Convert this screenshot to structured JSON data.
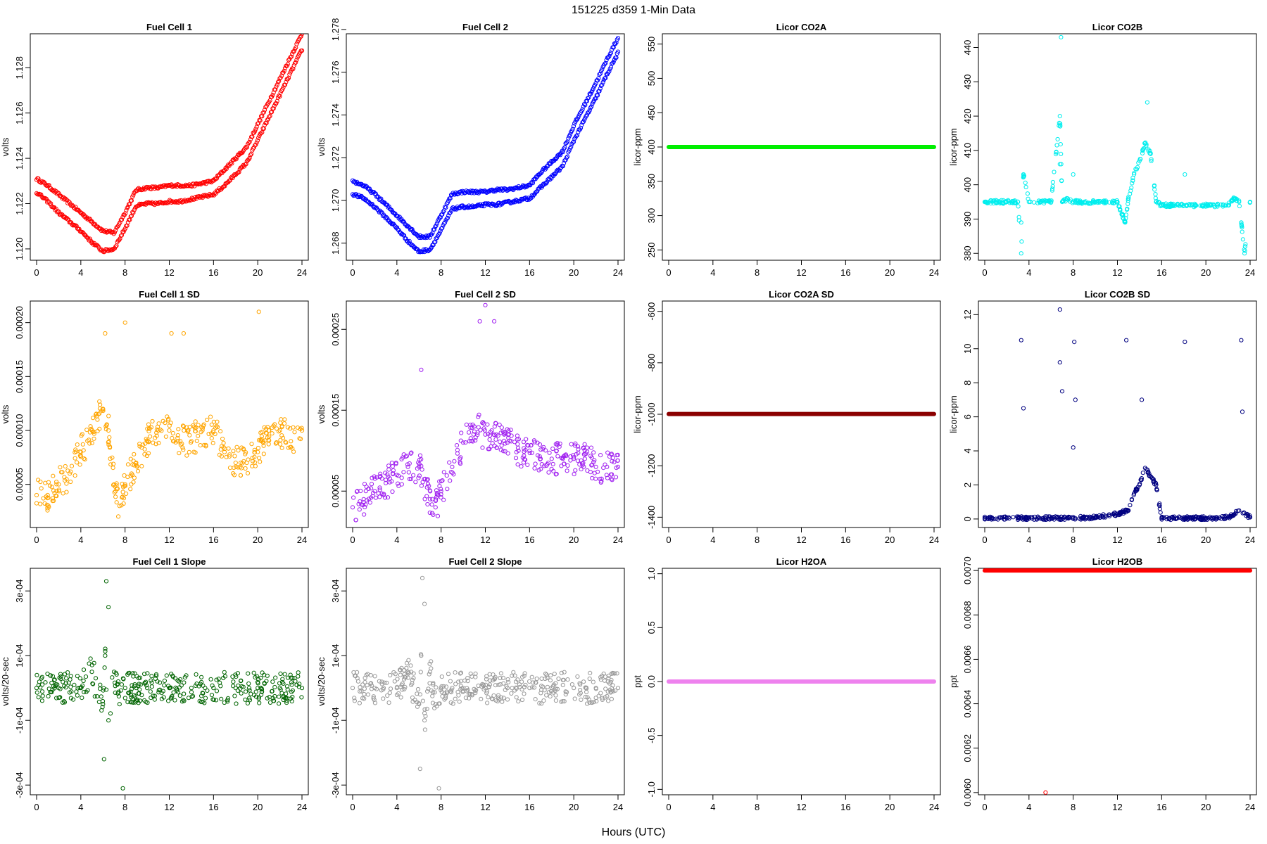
{
  "figure": {
    "suptitle": "151225    d359    1-Min Data",
    "xlabel": "Hours (UTC)"
  },
  "chart_data": [
    {
      "id": "fc1",
      "type": "scatter",
      "title": "Fuel Cell 1",
      "ylabel": "volts",
      "color": "#ff0000",
      "xlim": [
        0,
        24
      ],
      "xticks": [
        0,
        4,
        8,
        12,
        16,
        20,
        24
      ],
      "ylim": [
        1.1195,
        1.1295
      ],
      "yticks": [
        1.12,
        1.122,
        1.124,
        1.126,
        1.128
      ],
      "ytick_labels": [
        "1.120",
        "1.122",
        "1.124",
        "1.126",
        "1.128"
      ],
      "series": [
        {
          "name": "upper",
          "x": [
            0,
            1,
            2,
            3,
            4,
            5,
            6,
            7,
            8,
            9,
            10,
            11,
            12,
            13,
            14,
            15,
            16,
            17,
            18,
            19,
            20,
            21,
            22,
            23,
            24
          ],
          "y": [
            1.1231,
            1.1228,
            1.1224,
            1.122,
            1.1216,
            1.1212,
            1.1208,
            1.1207,
            1.1216,
            1.1226,
            1.1227,
            1.1227,
            1.1228,
            1.1228,
            1.1228,
            1.1229,
            1.123,
            1.1235,
            1.124,
            1.1245,
            1.1255,
            1.1265,
            1.1275,
            1.1285,
            1.1295
          ]
        },
        {
          "name": "lower",
          "x": [
            0,
            1,
            2,
            3,
            4,
            5,
            6,
            7,
            8,
            9,
            10,
            11,
            12,
            13,
            14,
            15,
            16,
            17,
            18,
            19,
            20,
            21,
            22,
            23,
            24
          ],
          "y": [
            1.1225,
            1.1221,
            1.1216,
            1.1212,
            1.1208,
            1.1203,
            1.1199,
            1.12,
            1.1209,
            1.1219,
            1.122,
            1.122,
            1.1221,
            1.1221,
            1.1222,
            1.1223,
            1.1224,
            1.1228,
            1.1233,
            1.1238,
            1.1248,
            1.1258,
            1.1268,
            1.1278,
            1.1288
          ]
        }
      ]
    },
    {
      "id": "fc2",
      "type": "scatter",
      "title": "Fuel Cell 2",
      "ylabel": "volts",
      "color": "#0000ff",
      "xlim": [
        0,
        24
      ],
      "xticks": [
        0,
        4,
        8,
        12,
        16,
        20,
        24
      ],
      "ylim": [
        1.2672,
        1.2778
      ],
      "yticks": [
        1.268,
        1.27,
        1.272,
        1.274,
        1.276,
        1.278
      ],
      "ytick_labels": [
        "1.268",
        "1.270",
        "1.272",
        "1.274",
        "1.276",
        "1.278"
      ],
      "series": [
        {
          "name": "upper",
          "x": [
            0,
            1,
            2,
            3,
            4,
            5,
            6,
            7,
            8,
            9,
            10,
            11,
            12,
            13,
            14,
            15,
            16,
            17,
            18,
            19,
            20,
            21,
            22,
            23,
            24
          ],
          "y": [
            1.2709,
            1.2707,
            1.2703,
            1.2698,
            1.2693,
            1.2688,
            1.2683,
            1.2683,
            1.2693,
            1.2703,
            1.2704,
            1.2704,
            1.2704,
            1.2705,
            1.2705,
            1.2706,
            1.2707,
            1.2713,
            1.2718,
            1.2723,
            1.2735,
            1.2745,
            1.2755,
            1.2766,
            1.2776
          ]
        },
        {
          "name": "lower",
          "x": [
            0,
            1,
            2,
            3,
            4,
            5,
            6,
            7,
            8,
            9,
            10,
            11,
            12,
            13,
            14,
            15,
            16,
            17,
            18,
            19,
            20,
            21,
            22,
            23,
            24
          ],
          "y": [
            1.2703,
            1.2701,
            1.2697,
            1.2692,
            1.2687,
            1.2681,
            1.2676,
            1.2677,
            1.2686,
            1.2696,
            1.2697,
            1.2697,
            1.2698,
            1.2698,
            1.2699,
            1.27,
            1.2701,
            1.2706,
            1.2711,
            1.2716,
            1.2728,
            1.2738,
            1.2748,
            1.2759,
            1.2769
          ]
        }
      ]
    },
    {
      "id": "co2a",
      "type": "line",
      "title": "Licor CO2A",
      "ylabel": "licor-ppm",
      "color": "#00ee00",
      "xlim": [
        0,
        24
      ],
      "xticks": [
        0,
        4,
        8,
        12,
        16,
        20,
        24
      ],
      "ylim": [
        235,
        565
      ],
      "yticks": [
        250,
        300,
        350,
        400,
        450,
        500,
        550
      ],
      "ytick_labels": [
        "250",
        "300",
        "350",
        "400",
        "450",
        "500",
        "550"
      ],
      "x": [
        0,
        24
      ],
      "y": [
        400,
        400
      ]
    },
    {
      "id": "co2b",
      "type": "scatter",
      "title": "Licor CO2B",
      "ylabel": "licor-ppm",
      "color": "#00eeee",
      "xlim": [
        0,
        24
      ],
      "xticks": [
        0,
        4,
        8,
        12,
        16,
        20,
        24
      ],
      "ylim": [
        378,
        444
      ],
      "yticks": [
        380,
        390,
        400,
        410,
        420,
        430,
        440
      ],
      "ytick_labels": [
        "380",
        "390",
        "400",
        "410",
        "420",
        "430",
        "440"
      ],
      "x": [
        0,
        1,
        2,
        3,
        3.3,
        3.5,
        4,
        5,
        6,
        6.8,
        7,
        7.5,
        8,
        9,
        10,
        11,
        12,
        12.7,
        13,
        13.5,
        14,
        14.5,
        15,
        15.5,
        16,
        17,
        18,
        19,
        20,
        21,
        22,
        22.5,
        23,
        23.5,
        24,
        3.3,
        8,
        18.1,
        23.2,
        6.9,
        6.8,
        14.7
      ],
      "y": [
        395,
        395,
        395,
        395,
        380,
        403,
        395,
        395,
        395,
        420,
        395,
        396,
        395,
        395,
        395,
        395,
        395,
        389,
        396,
        403,
        407,
        412,
        409,
        395,
        394,
        394,
        394,
        394,
        394,
        394,
        394,
        396,
        395,
        380,
        395,
        389,
        403,
        403,
        389,
        443,
        406,
        424
      ]
    },
    {
      "id": "fc1sd",
      "type": "scatter",
      "title": "Fuel Cell 1 SD",
      "ylabel": "volts",
      "color": "#ffa500",
      "xlim": [
        0,
        24
      ],
      "xticks": [
        0,
        4,
        8,
        12,
        16,
        20,
        24
      ],
      "ylim": [
        1e-05,
        0.00022
      ],
      "yticks": [
        5e-05,
        0.0001,
        0.00015,
        0.0002
      ],
      "ytick_labels": [
        "0.00005",
        "0.00010",
        "0.00015",
        "0.00020"
      ],
      "x": [
        0,
        1,
        2,
        3,
        4,
        5,
        5.5,
        6,
        6.5,
        7,
        7.5,
        8,
        9,
        10,
        11,
        12,
        13,
        14,
        15,
        16,
        17,
        18,
        19,
        20,
        21,
        22,
        23,
        24,
        8,
        6.2,
        20.1,
        12.2,
        13.3
      ],
      "y": [
        4e-05,
        4e-05,
        5e-05,
        6e-05,
        8e-05,
        0.0001,
        0.00011,
        0.00012,
        0.0001,
        5e-05,
        3e-05,
        5e-05,
        7e-05,
        9e-05,
        0.0001,
        0.0001,
        9e-05,
        9e-05,
        0.0001,
        0.0001,
        8e-05,
        7e-05,
        7e-05,
        8e-05,
        0.0001,
        0.0001,
        9e-05,
        0.0001,
        0.0002,
        0.00019,
        0.00021,
        0.00019,
        0.00019
      ]
    },
    {
      "id": "fc2sd",
      "type": "scatter",
      "title": "Fuel Cell 2 SD",
      "ylabel": "volts",
      "color": "#a020f0",
      "xlim": [
        0,
        24
      ],
      "xticks": [
        0,
        4,
        8,
        12,
        16,
        20,
        24
      ],
      "ylim": [
        5e-06,
        0.000285
      ],
      "yticks": [
        5e-05,
        0.00015,
        0.00025
      ],
      "ytick_labels": [
        "0.00005",
        "0.00015",
        "0.00025"
      ],
      "x": [
        0,
        1,
        2,
        3,
        4,
        5,
        6,
        7,
        7.5,
        8,
        9,
        10,
        11,
        12,
        13,
        14,
        15,
        16,
        17,
        18,
        19,
        20,
        21,
        22,
        23,
        24,
        12,
        11.5,
        12.8,
        6.2
      ],
      "y": [
        3e-05,
        4e-05,
        5e-05,
        6e-05,
        7e-05,
        8e-05,
        8e-05,
        4e-05,
        3e-05,
        5e-05,
        8e-05,
        0.00011,
        0.00013,
        0.00012,
        0.00012,
        0.00011,
        0.0001,
        0.0001,
        9e-05,
        9e-05,
        9e-05,
        9e-05,
        9e-05,
        8e-05,
        8e-05,
        8e-05,
        0.00028,
        0.00026,
        0.00026,
        0.0002
      ]
    },
    {
      "id": "co2asd",
      "type": "line",
      "title": "Licor CO2A SD",
      "ylabel": "licor-ppm",
      "color": "#8b0000",
      "xlim": [
        0,
        24
      ],
      "xticks": [
        0,
        4,
        8,
        12,
        16,
        20,
        24
      ],
      "ylim": [
        -1440,
        -560
      ],
      "yticks": [
        -1400,
        -1200,
        -1000,
        -800,
        -600
      ],
      "ytick_labels": [
        "-1400",
        "-1200",
        "-1000",
        "-800",
        "-600"
      ],
      "x": [
        0,
        24
      ],
      "y": [
        -999,
        -999
      ]
    },
    {
      "id": "co2bsd",
      "type": "scatter",
      "title": "Licor CO2B SD",
      "ylabel": "licor-ppm",
      "color": "#000080",
      "xlim": [
        0,
        24
      ],
      "xticks": [
        0,
        4,
        8,
        12,
        16,
        20,
        24
      ],
      "ylim": [
        -0.5,
        12.8
      ],
      "yticks": [
        0,
        2,
        4,
        6,
        8,
        10,
        12
      ],
      "ytick_labels": [
        "0",
        "2",
        "4",
        "6",
        "8",
        "10",
        "12"
      ],
      "x": [
        0,
        2,
        4,
        6,
        8,
        10,
        12,
        13,
        13.5,
        14,
        14.5,
        15,
        15.5,
        16,
        18,
        20,
        22,
        23,
        24,
        3.3,
        3.5,
        6.8,
        7,
        8.1,
        8.2,
        12.8,
        14.2,
        18.1,
        23.2,
        23.3,
        6.8,
        8
      ],
      "y": [
        0.05,
        0.05,
        0.05,
        0.05,
        0.05,
        0.1,
        0.3,
        0.5,
        1.5,
        2,
        3,
        2.5,
        2,
        0.05,
        0.05,
        0.05,
        0.1,
        0.5,
        0.1,
        10.5,
        6.5,
        9.2,
        7.5,
        10.4,
        7,
        10.5,
        7,
        10.4,
        10.5,
        6.3,
        12.3,
        4.2
      ]
    },
    {
      "id": "fc1slope",
      "type": "scatter",
      "title": "Fuel Cell 1 Slope",
      "ylabel": "volts/20-sec",
      "color": "#006400",
      "xlim": [
        0,
        24
      ],
      "xticks": [
        0,
        4,
        8,
        12,
        16,
        20,
        24
      ],
      "ylim": [
        -0.00033,
        0.00037
      ],
      "yticks": [
        -0.0003,
        -0.0001,
        0.0001,
        0.0003
      ],
      "ytick_labels": [
        "-3e-04",
        "-1e-04",
        "1e-04",
        "3e-04"
      ],
      "x": [
        0,
        2,
        4,
        5,
        6,
        6.2,
        6.5,
        7,
        7.5,
        8,
        9,
        10,
        12,
        14,
        16,
        18,
        20,
        22,
        24,
        6.3,
        6.5,
        7.8,
        6.1
      ],
      "y": [
        0,
        0,
        0,
        5e-05,
        -5e-05,
        0.0001,
        -0.0001,
        5e-05,
        -5e-05,
        0,
        0,
        0,
        0,
        0,
        0,
        0,
        0,
        0,
        0,
        0.00033,
        0.00025,
        -0.00031,
        -0.00022
      ]
    },
    {
      "id": "fc2slope",
      "type": "scatter",
      "title": "Fuel Cell 2 Slope",
      "ylabel": "volts/20-sec",
      "color": "#999999",
      "xlim": [
        0,
        24
      ],
      "xticks": [
        0,
        4,
        8,
        12,
        16,
        20,
        24
      ],
      "ylim": [
        -0.00033,
        0.00037
      ],
      "yticks": [
        -0.0003,
        -0.0001,
        0.0001,
        0.0003
      ],
      "ytick_labels": [
        "-3e-04",
        "-1e-04",
        "1e-04",
        "3e-04"
      ],
      "x": [
        0,
        2,
        4,
        5,
        6,
        6.2,
        6.5,
        7,
        7.5,
        8,
        9,
        10,
        12,
        14,
        16,
        18,
        20,
        22,
        24,
        6.3,
        6.5,
        7.8,
        6.1
      ],
      "y": [
        0,
        0,
        0,
        5e-05,
        -5e-05,
        0.0001,
        -0.0001,
        5e-05,
        -5e-05,
        0,
        0,
        0,
        0,
        0,
        0,
        0,
        0,
        0,
        0,
        0.00034,
        0.00026,
        -0.00031,
        -0.00025
      ]
    },
    {
      "id": "h2oa",
      "type": "line",
      "title": "Licor H2OA",
      "ylabel": "ppt",
      "color": "#ee82ee",
      "xlim": [
        0,
        24
      ],
      "xticks": [
        0,
        4,
        8,
        12,
        16,
        20,
        24
      ],
      "ylim": [
        -1.05,
        1.05
      ],
      "yticks": [
        -1,
        -0.5,
        0,
        0.5,
        1
      ],
      "ytick_labels": [
        "-1.0",
        "-0.5",
        "0.0",
        "0.5",
        "1.0"
      ],
      "x": [
        0,
        24
      ],
      "y": [
        0,
        0
      ]
    },
    {
      "id": "h2ob",
      "type": "line",
      "title": "Licor H2OB",
      "ylabel": "ppt",
      "color": "#ff0000",
      "xlim": [
        0,
        24
      ],
      "xticks": [
        0,
        4,
        8,
        12,
        16,
        20,
        24
      ],
      "ylim": [
        0.00599,
        0.00701
      ],
      "yticks": [
        0.006,
        0.0062,
        0.0064,
        0.0066,
        0.0068,
        0.007
      ],
      "ytick_labels": [
        "0.0060",
        "0.0062",
        "0.0064",
        "0.0066",
        "0.0068",
        "0.0070"
      ],
      "x": [
        0,
        24
      ],
      "y": [
        0.007,
        0.007
      ],
      "outlier": {
        "x": 5.5,
        "y": 0.006
      }
    }
  ]
}
